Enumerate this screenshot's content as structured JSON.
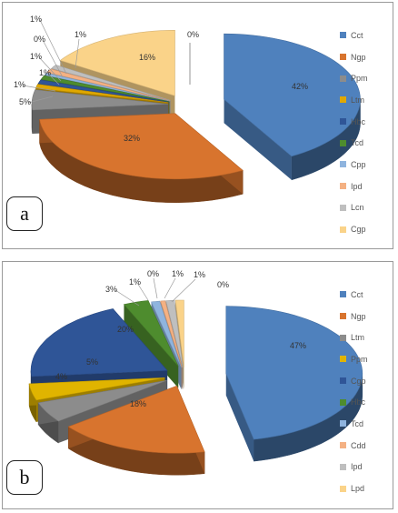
{
  "chart_data": [
    {
      "type": "pie",
      "panel_label": "a",
      "three_d": true,
      "exploded": true,
      "legend_position": "right",
      "series": [
        {
          "name": "Cct",
          "value": 42,
          "label": "42%",
          "color": "#4F81BD"
        },
        {
          "name": "Ngp",
          "value": 32,
          "label": "32%",
          "color": "#D8742E"
        },
        {
          "name": "Ppm",
          "value": 5,
          "label": "5%",
          "color": "#8C8C8C"
        },
        {
          "name": "Ltm",
          "value": 1,
          "label": "1%",
          "color": "#E0A800"
        },
        {
          "name": "Hbc",
          "value": 1,
          "label": "1%",
          "color": "#2F5597"
        },
        {
          "name": "Tcd",
          "value": 1,
          "label": "1%",
          "color": "#4E8C2E"
        },
        {
          "name": "Cpp",
          "value": 0,
          "label": "0%",
          "color": "#8FB4DE"
        },
        {
          "name": "Ipd",
          "value": 1,
          "label": "1%",
          "color": "#F4B183"
        },
        {
          "name": "Lcn",
          "value": 1,
          "label": "1%",
          "color": "#BFBFBF"
        },
        {
          "name": "Cgp",
          "value": 16,
          "label": "16%",
          "color": "#FAD389"
        }
      ],
      "extra_label": "0%"
    },
    {
      "type": "pie",
      "panel_label": "b",
      "three_d": true,
      "exploded": true,
      "legend_position": "right",
      "series": [
        {
          "name": "Cct",
          "value": 47,
          "label": "47%",
          "color": "#4F81BD"
        },
        {
          "name": "Ngp",
          "value": 18,
          "label": "18%",
          "color": "#D8742E"
        },
        {
          "name": "Ltm",
          "value": 5,
          "label": "5%",
          "color": "#8C8C8C"
        },
        {
          "name": "Ppm",
          "value": 4,
          "label": "4%",
          "color": "#E0B400"
        },
        {
          "name": "Cgp",
          "value": 20,
          "label": "20%",
          "color": "#2F5597"
        },
        {
          "name": "Hbc",
          "value": 3,
          "label": "3%",
          "color": "#4E8C2E"
        },
        {
          "name": "Tcd",
          "value": 1,
          "label": "1%",
          "color": "#8FB4DE"
        },
        {
          "name": "Cdd",
          "value": 0,
          "label": "0%",
          "color": "#F4B183"
        },
        {
          "name": "Ipd",
          "value": 1,
          "label": "1%",
          "color": "#BFBFBF"
        },
        {
          "name": "Lpd",
          "value": 1,
          "label": "1%",
          "color": "#FAD389"
        }
      ],
      "extra_label": "0%"
    }
  ]
}
